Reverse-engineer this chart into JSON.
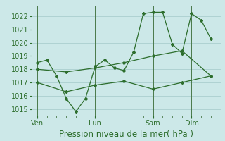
{
  "background_color": "#cce8e8",
  "grid_color": "#aacece",
  "line_color": "#2d6e2d",
  "marker_color": "#2d6e2d",
  "xlabel": "Pression niveau de la mer( hPa )",
  "ylim": [
    1014.5,
    1022.8
  ],
  "yticks": [
    1015,
    1016,
    1017,
    1018,
    1019,
    1020,
    1021,
    1022
  ],
  "day_labels": [
    "Ven",
    "Lun",
    "Sam",
    "Dim"
  ],
  "day_positions": [
    0,
    3,
    6,
    8
  ],
  "xlim": [
    -0.3,
    9.5
  ],
  "series1_x": [
    0,
    0.5,
    1.0,
    1.5,
    2.0,
    2.5,
    3.0,
    3.5,
    4.0,
    4.5,
    5.0,
    5.5,
    6.0,
    6.5,
    7.0,
    7.5,
    8.0,
    8.5,
    9.0
  ],
  "series1_y": [
    1018.5,
    1018.7,
    1017.5,
    1015.8,
    1014.8,
    1015.8,
    1018.2,
    1018.7,
    1018.1,
    1017.9,
    1019.3,
    1022.2,
    1022.3,
    1022.3,
    1019.9,
    1019.2,
    1022.2,
    1021.7,
    1020.3
  ],
  "series2_x": [
    0,
    1.5,
    3.0,
    4.5,
    6.0,
    7.5,
    9.0
  ],
  "series2_y": [
    1018.0,
    1017.8,
    1018.1,
    1018.5,
    1019.0,
    1019.4,
    1017.5
  ],
  "series3_x": [
    0,
    1.5,
    3.0,
    4.5,
    6.0,
    7.5,
    9.0
  ],
  "series3_y": [
    1017.0,
    1016.3,
    1016.8,
    1017.1,
    1016.5,
    1017.0,
    1017.5
  ],
  "vline_positions": [
    0,
    3,
    6,
    8
  ],
  "vline_color": "#4a7a4a",
  "tick_label_fontsize": 7,
  "xlabel_fontsize": 8.5
}
